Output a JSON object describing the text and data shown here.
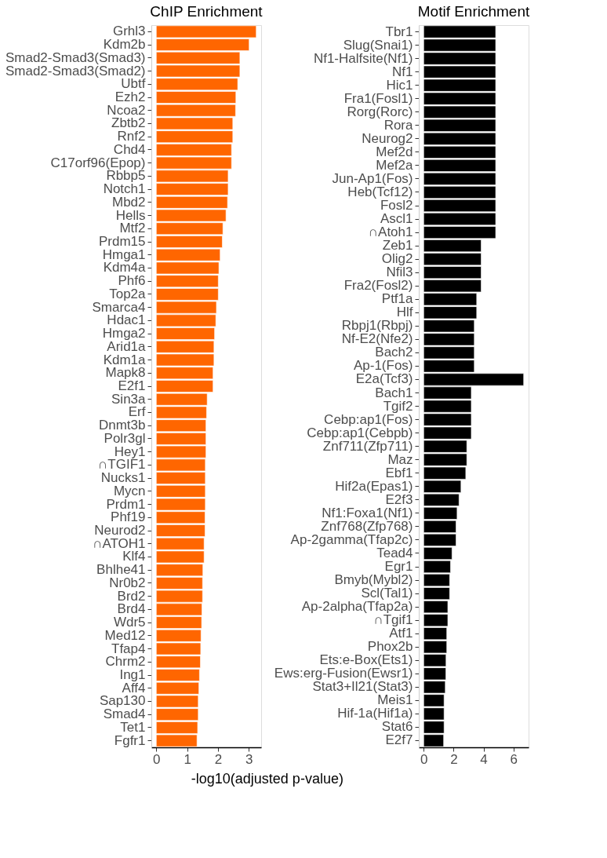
{
  "chart_data": [
    {
      "type": "bar",
      "orientation": "horizontal",
      "title": "ChIP Enrichment",
      "xlabel": "-log10(adjusted p-value)",
      "color": "#ff6600",
      "categories": [
        "Grhl3",
        "Kdm2b",
        "Smad2-Smad3(Smad3)",
        "Smad2-Smad3(Smad2)",
        "Ubtf",
        "Ezh2",
        "Ncoa2",
        "Zbtb2",
        "Rnf2",
        "Chd4",
        "C17orf96(Epop)",
        "Rbbp5",
        "Notch1",
        "Mbd2",
        "Hells",
        "Mtf2",
        "Prdm15",
        "Hmga1",
        "Kdm4a",
        "Phf6",
        "Top2a",
        "Smarca4",
        "Hdac1",
        "Hmga2",
        "Arid1a",
        "Kdm1a",
        "Mapk8",
        "E2f1",
        "Sin3a",
        "Erf",
        "Dnmt3b",
        "Polr3gl",
        "Hey1",
        "∩TGIF1",
        "Nucks1",
        "Mycn",
        "Prdm1",
        "Phf19",
        "Neurod2",
        "∩ATOH1",
        "Klf4",
        "Bhlhe41",
        "Nr0b2",
        "Brd2",
        "Brd4",
        "Wdr5",
        "Med12",
        "Tfap4",
        "Chrm2",
        "Ing1",
        "Aff4",
        "Sap130",
        "Smad4",
        "Tet1",
        "Fgfr1"
      ],
      "values": [
        3.24,
        3.01,
        2.71,
        2.71,
        2.64,
        2.58,
        2.57,
        2.48,
        2.48,
        2.44,
        2.44,
        2.33,
        2.33,
        2.31,
        2.26,
        2.16,
        2.14,
        2.07,
        2.03,
        2.01,
        2.01,
        1.95,
        1.93,
        1.89,
        1.87,
        1.87,
        1.84,
        1.84,
        1.65,
        1.63,
        1.61,
        1.61,
        1.61,
        1.59,
        1.59,
        1.59,
        1.59,
        1.58,
        1.58,
        1.55,
        1.55,
        1.51,
        1.5,
        1.5,
        1.48,
        1.47,
        1.45,
        1.44,
        1.43,
        1.4,
        1.38,
        1.36,
        1.36,
        1.34,
        1.32
      ],
      "xlim": [
        -0.16,
        3.4
      ],
      "xticks": [
        0,
        1,
        2,
        3
      ],
      "grid": false
    },
    {
      "type": "bar",
      "orientation": "horizontal",
      "title": "Motif Enrichment",
      "color": "#000000",
      "categories": [
        "Tbr1",
        "Slug(Snai1)",
        "Nf1-Halfsite(Nf1)",
        "Nf1",
        "Hic1",
        "Fra1(Fosl1)",
        "Rorg(Rorc)",
        "Rora",
        "Neurog2",
        "Mef2d",
        "Mef2a",
        "Jun-Ap1(Fos)",
        "Heb(Tcf12)",
        "Fosl2",
        "Ascl1",
        "∩Atoh1",
        "Zeb1",
        "Olig2",
        "Nfil3",
        "Fra2(Fosl2)",
        "Ptf1a",
        "Hlf",
        "Rbpj1(Rbpj)",
        "Nf-E2(Nfe2)",
        "Bach2",
        "Ap-1(Fos)",
        "E2a(Tcf3)",
        "Bach1",
        "Tgif2",
        "Cebp:ap1(Fos)",
        "Cebp:ap1(Cebpb)",
        "Znf711(Zfp711)",
        "Maz",
        "Ebf1",
        "Hif2a(Epas1)",
        "E2f3",
        "Nf1:Foxa1(Nf1)",
        "Znf768(Zfp768)",
        "Ap-2gamma(Tfap2c)",
        "Tead4",
        "Egr1",
        "Bmyb(Mybl2)",
        "Scl(Tal1)",
        "Ap-2alpha(Tfap2a)",
        "∩Tgif1",
        "Atf1",
        "Phox2b",
        "Ets:e-Box(Ets1)",
        "Ews:erg-Fusion(Ewsr1)",
        "Stat3+Il21(Stat3)",
        "Meis1",
        "Hif-1a(Hif1a)",
        "Stat6",
        "E2f7"
      ],
      "values": [
        4.81,
        4.81,
        4.81,
        4.81,
        4.81,
        4.81,
        4.81,
        4.81,
        4.81,
        4.81,
        4.81,
        4.81,
        4.81,
        4.81,
        4.81,
        4.81,
        3.84,
        3.84,
        3.84,
        3.84,
        3.54,
        3.54,
        3.38,
        3.38,
        3.38,
        3.38,
        6.68,
        3.18,
        3.18,
        3.18,
        3.18,
        2.88,
        2.88,
        2.81,
        2.49,
        2.36,
        2.23,
        2.16,
        2.16,
        1.89,
        1.79,
        1.73,
        1.73,
        1.61,
        1.61,
        1.54,
        1.54,
        1.49,
        1.48,
        1.44,
        1.36,
        1.36,
        1.36,
        1.33
      ],
      "xlim": [
        -0.33,
        7.01
      ],
      "xticks": [
        0,
        2,
        4,
        6
      ],
      "grid": false
    }
  ]
}
